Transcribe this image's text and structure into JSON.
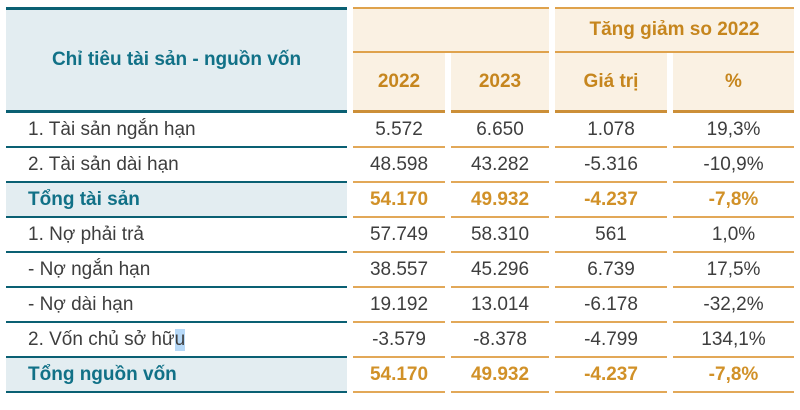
{
  "chart_data": {
    "type": "table",
    "header": {
      "label_column": "Chỉ tiêu tài sản - nguồn vốn",
      "group_label": "Tăng giảm so 2022",
      "year_columns": [
        "2022",
        "2023"
      ],
      "change_columns": [
        "Giá trị",
        "%"
      ]
    },
    "rows": [
      {
        "label": "1. Tài sản ngắn hạn",
        "y2022": "5.572",
        "y2023": "6.650",
        "change_value": "1.078",
        "change_pct": "19,3%",
        "row_style": "normal"
      },
      {
        "label": "2. Tài sản dài hạn",
        "y2022": "48.598",
        "y2023": "43.282",
        "change_value": "-5.316",
        "change_pct": "-10,9%",
        "row_style": "normal"
      },
      {
        "label": "Tổng tài sản",
        "y2022": "54.170",
        "y2023": "49.932",
        "change_value": "-4.237",
        "change_pct": "-7,8%",
        "row_style": "total"
      },
      {
        "label": "1. Nợ phải trả",
        "y2022": "57.749",
        "y2023": "58.310",
        "change_value": "561",
        "change_pct": "1,0%",
        "row_style": "normal"
      },
      {
        "label": "- Nợ ngắn hạn",
        "y2022": "38.557",
        "y2023": "45.296",
        "change_value": "6.739",
        "change_pct": "17,5%",
        "row_style": "normal"
      },
      {
        "label": "- Nợ dài hạn",
        "y2022": "19.192",
        "y2023": "13.014",
        "change_value": "-6.178",
        "change_pct": "-32,2%",
        "row_style": "normal"
      },
      {
        "label": "2. Vốn chủ sở hữ",
        "label_selected": "u",
        "y2022": "-3.579",
        "y2023": "-8.378",
        "change_value": "-4.799",
        "change_pct": "134,1%",
        "row_style": "normal"
      },
      {
        "label": "Tổng nguồn vốn",
        "y2022": "54.170",
        "y2023": "49.932",
        "change_value": "-4.237",
        "change_pct": "-7,8%",
        "row_style": "total"
      }
    ]
  },
  "colors": {
    "teal_text": "#117187",
    "teal_border": "#0A6073",
    "label_header_bg": "#E3EDF1",
    "total_row_bg": "#E3EDF1",
    "header_bg_cream": "#FAF1E3",
    "orange_header_text": "#C6861E",
    "orange_total_text": "#D19128",
    "orange_border": "#E2A858",
    "orange_border_dark": "#CC8F38",
    "data_text": "#3E3E3E",
    "text_selection": "#B7D9F8"
  }
}
